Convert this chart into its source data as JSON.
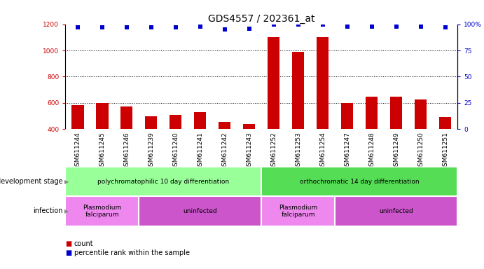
{
  "title": "GDS4557 / 202361_at",
  "categories": [
    "GSM611244",
    "GSM611245",
    "GSM611246",
    "GSM611239",
    "GSM611240",
    "GSM611241",
    "GSM611242",
    "GSM611243",
    "GSM611252",
    "GSM611253",
    "GSM611254",
    "GSM611247",
    "GSM611248",
    "GSM611249",
    "GSM611250",
    "GSM611251"
  ],
  "counts": [
    585,
    600,
    570,
    500,
    510,
    530,
    455,
    440,
    1100,
    990,
    1100,
    600,
    645,
    645,
    625,
    495
  ],
  "percentiles": [
    97,
    97,
    97,
    97,
    97,
    98,
    95,
    96,
    100,
    100,
    100,
    98,
    98,
    98,
    98,
    97
  ],
  "bar_color": "#cc0000",
  "dot_color": "#0000cc",
  "ylim_left": [
    400,
    1200
  ],
  "ylim_right": [
    0,
    100
  ],
  "yticks_left": [
    400,
    600,
    800,
    1000,
    1200
  ],
  "yticks_right": [
    0,
    25,
    50,
    75,
    100
  ],
  "grid_values": [
    600,
    800,
    1000
  ],
  "dev_stage_groups": [
    {
      "label": "polychromatophilic 10 day differentiation",
      "start": 0,
      "end": 8,
      "color": "#99ff99"
    },
    {
      "label": "orthochromatic 14 day differentiation",
      "start": 8,
      "end": 16,
      "color": "#55dd55"
    }
  ],
  "infection_groups": [
    {
      "label": "Plasmodium\nfalciparum",
      "start": 0,
      "end": 3,
      "color": "#ee88ee"
    },
    {
      "label": "uninfected",
      "start": 3,
      "end": 8,
      "color": "#cc55cc"
    },
    {
      "label": "Plasmodium\nfalciparum",
      "start": 8,
      "end": 11,
      "color": "#ee88ee"
    },
    {
      "label": "uninfected",
      "start": 11,
      "end": 16,
      "color": "#cc55cc"
    }
  ],
  "background_color": "#ffffff",
  "tick_color_left": "#cc0000",
  "tick_color_right": "#0000cc",
  "title_fontsize": 10,
  "tick_fontsize": 6.5,
  "bar_width": 0.5,
  "xtick_area_color": "#d8d8d8",
  "chart_bg_color": "#ffffff",
  "dot_size": 4
}
